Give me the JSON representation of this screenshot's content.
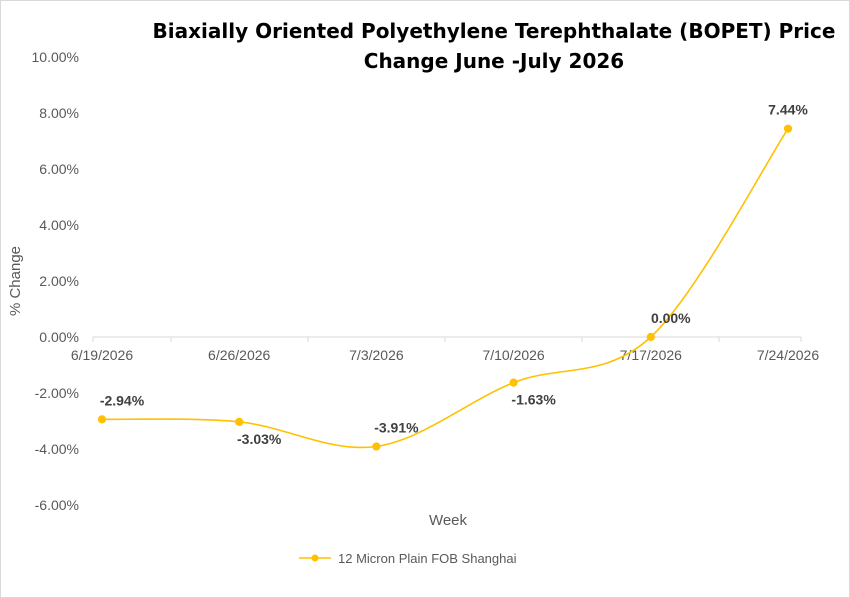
{
  "chart_data": {
    "type": "line",
    "title": "Biaxially Oriented Polyethylene Terephthalate (BOPET) Price Change June -July 2026",
    "title_lines": [
      "Biaxially Oriented Polyethylene Terephthalate (BOPET) Price",
      "Change June -July 2026"
    ],
    "xlabel": "Week",
    "ylabel": "% Change",
    "categories": [
      "6/19/2026",
      "6/26/2026",
      "7/3/2026",
      "7/10/2026",
      "7/17/2026",
      "7/24/2026"
    ],
    "series": [
      {
        "name": "12 Micron Plain FOB Shanghai",
        "values": [
          -2.94,
          -3.03,
          -3.91,
          -1.63,
          0.0,
          7.44
        ],
        "labels": [
          "-2.94%",
          "-3.03%",
          "-3.91%",
          "-1.63%",
          "0.00%",
          "7.44%"
        ],
        "color": "#FFC000"
      }
    ],
    "ylim": [
      -6,
      10
    ],
    "yticks": [
      -6,
      -4,
      -2,
      0,
      2,
      4,
      6,
      8,
      10
    ],
    "ytick_labels": [
      "-6.00%",
      "-4.00%",
      "-2.00%",
      "0.00%",
      "2.00%",
      "4.00%",
      "6.00%",
      "8.00%",
      "10.00%"
    ],
    "grid": false,
    "smooth": true,
    "legend_position": "bottom",
    "label_positions": [
      "above",
      "below",
      "above",
      "below",
      "above",
      "above"
    ]
  }
}
